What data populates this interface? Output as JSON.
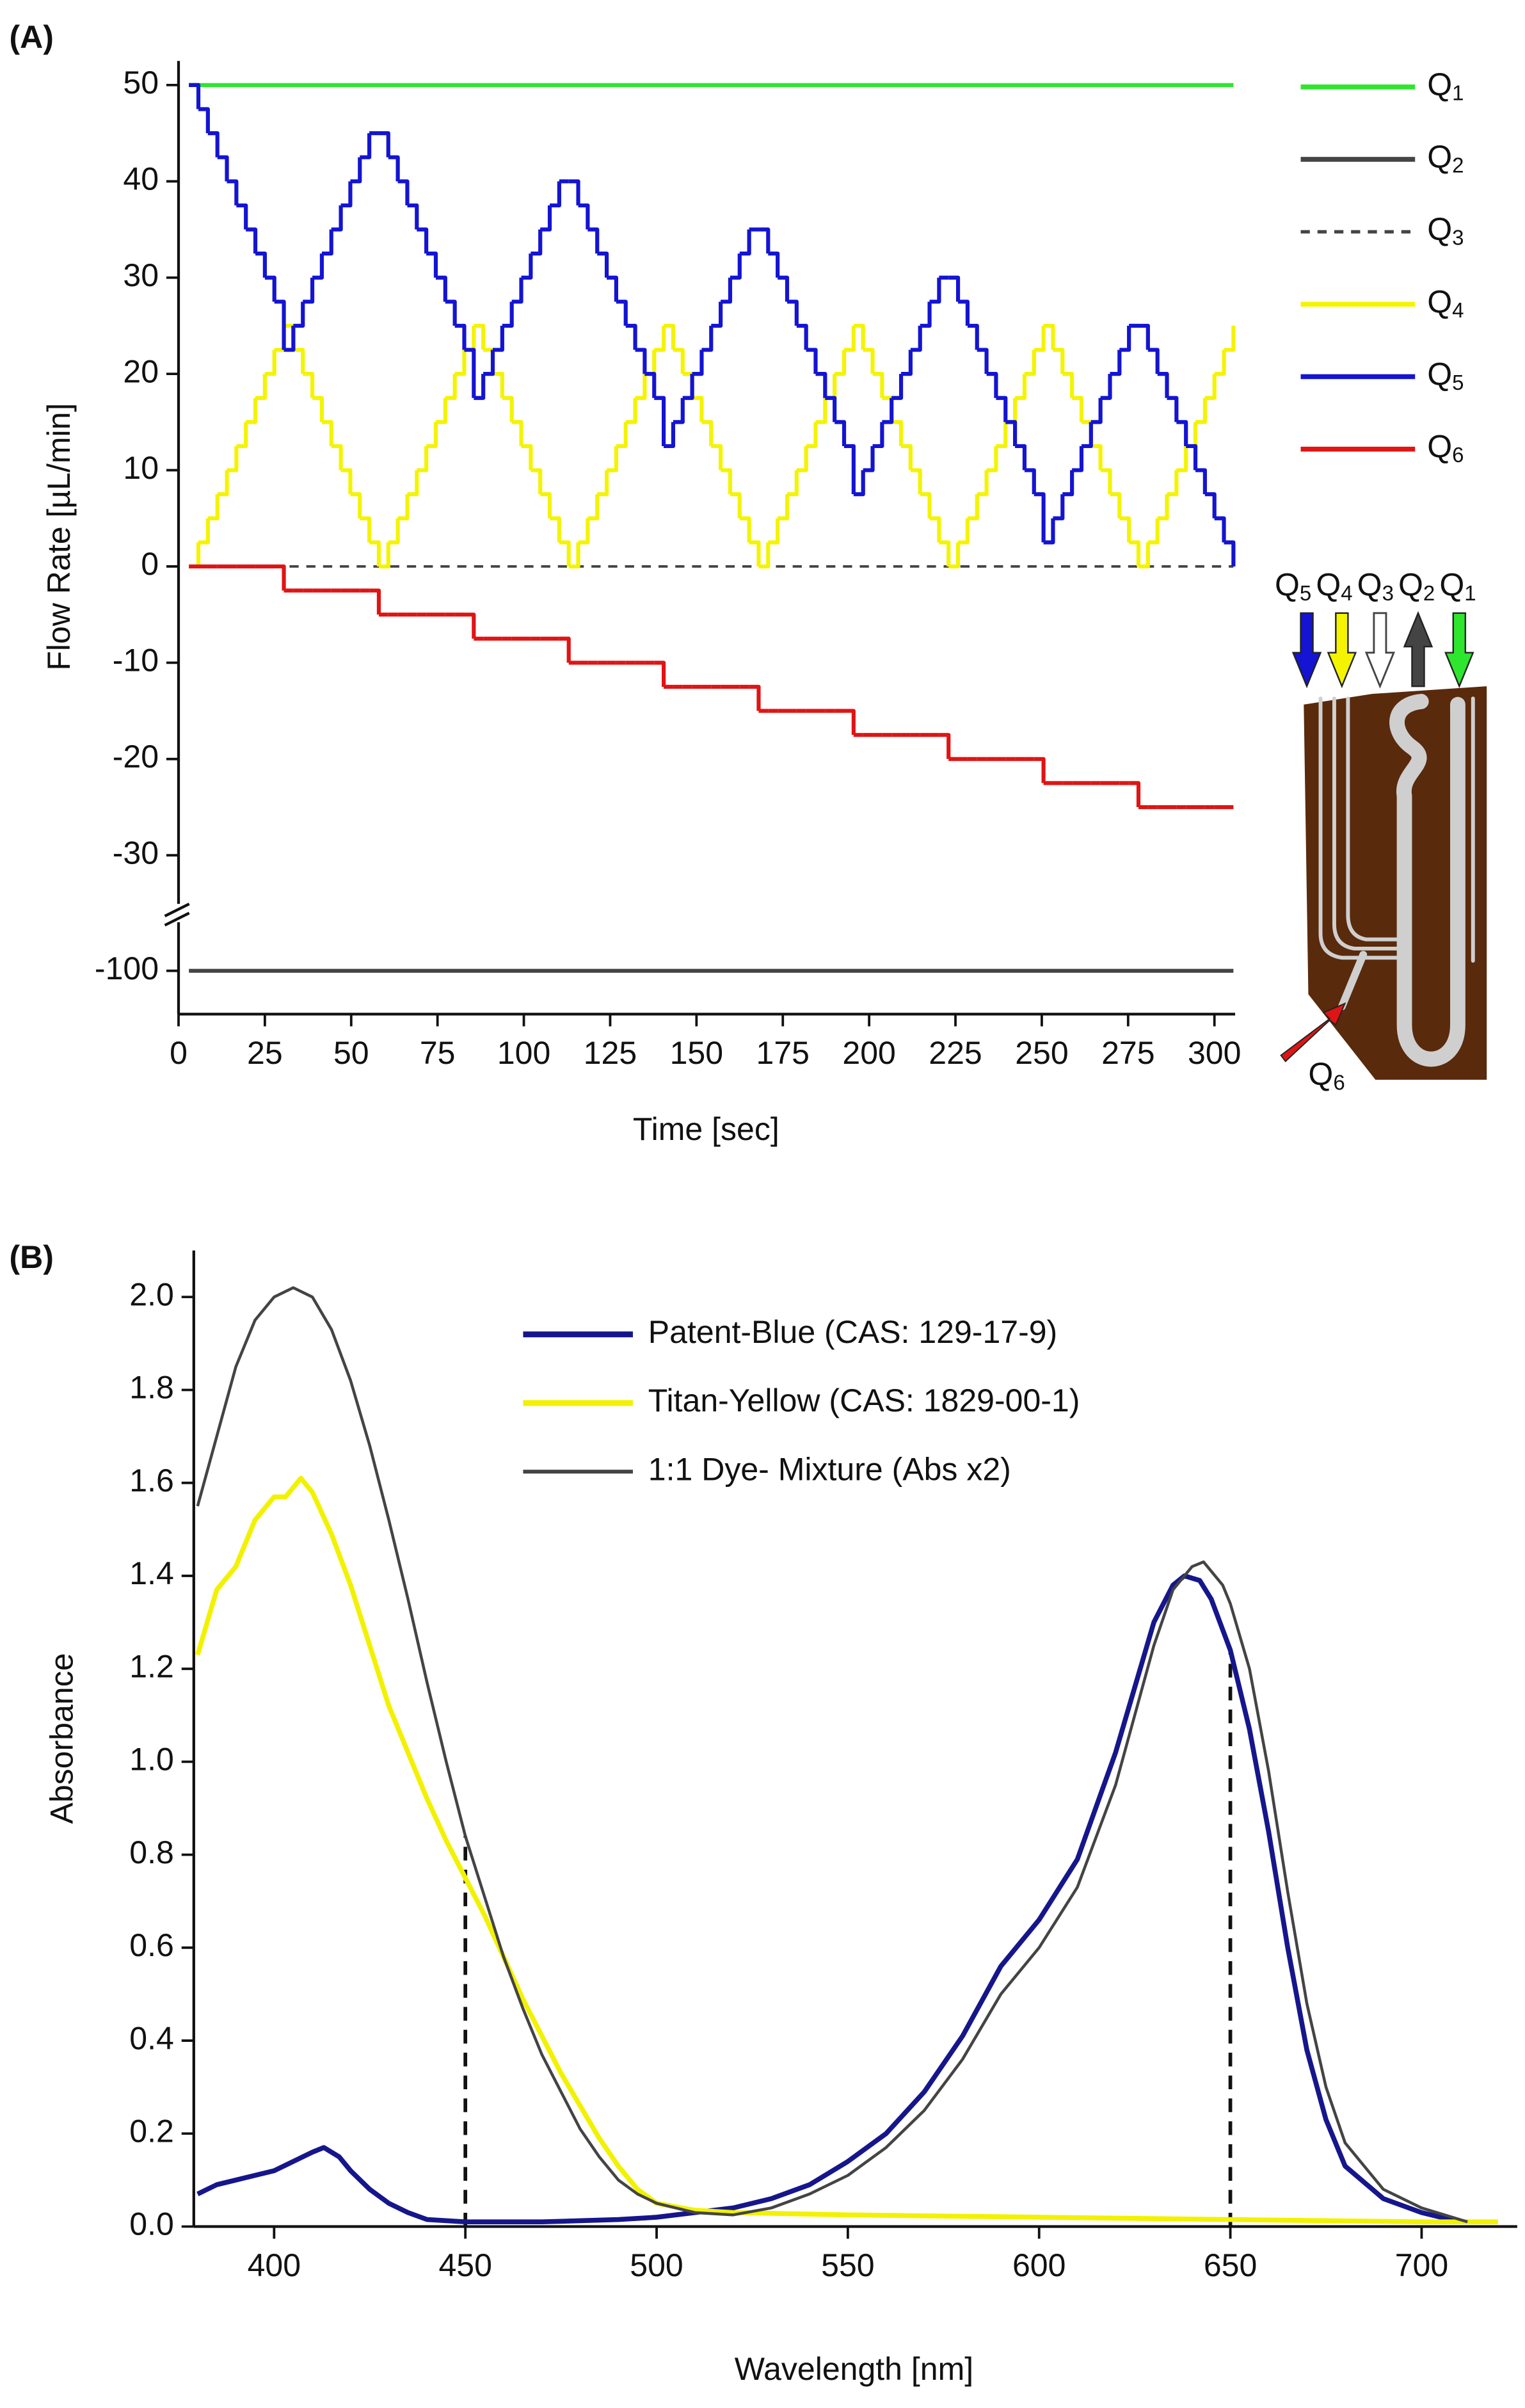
{
  "chart_data": [
    {
      "type": "line",
      "step": "post",
      "panel_label": "(A)",
      "xlabel": "Time [sec]",
      "ylabel": "Flow Rate [µL/min]",
      "xlim": [
        0,
        306
      ],
      "xticks": [
        0,
        25,
        50,
        75,
        100,
        125,
        150,
        175,
        200,
        225,
        250,
        275,
        300
      ],
      "ylim": [
        -104.5,
        52.5
      ],
      "ybreak": [
        -94,
        -36
      ],
      "yticks": [
        50,
        40,
        30,
        20,
        10,
        0,
        -10,
        -20,
        -30,
        -100
      ],
      "legend": "right",
      "x": [
        3,
        5.75,
        8.5,
        11.25,
        14,
        16.75,
        19.5,
        22.25,
        25,
        27.75,
        30.5,
        33.25,
        36,
        38.75,
        41.5,
        44.25,
        47,
        49.75,
        52.5,
        55.25,
        58,
        60.75,
        63.5,
        66.25,
        69,
        71.75,
        74.5,
        77.25,
        80,
        82.75,
        85.5,
        88.25,
        91,
        93.75,
        96.5,
        99.25,
        102,
        104.75,
        107.5,
        110.25,
        113,
        115.75,
        118.5,
        121.25,
        124,
        126.75,
        129.5,
        132.25,
        135,
        137.75,
        140.5,
        143.25,
        146,
        148.75,
        151.5,
        154.25,
        157,
        159.75,
        162.5,
        165.25,
        168,
        170.75,
        173.5,
        176.25,
        179,
        181.75,
        184.5,
        187.25,
        190,
        192.75,
        195.5,
        198.25,
        201,
        203.75,
        206.5,
        209.25,
        212,
        214.75,
        217.5,
        220.25,
        223,
        225.75,
        228.5,
        231.25,
        234,
        236.75,
        239.5,
        242.25,
        245,
        247.75,
        250.5,
        253.25,
        256,
        258.75,
        261.5,
        264.25,
        267,
        269.75,
        272.5,
        275.25,
        278,
        280.75,
        283.5,
        286.25,
        289,
        291.75,
        294.5,
        297.25,
        300,
        302.75,
        305.5
      ],
      "series": [
        {
          "name": "Q1",
          "color": "#2ee62e",
          "linewidth": 2.6,
          "x": [
            3,
            305.5
          ],
          "values": [
            50,
            50
          ]
        },
        {
          "name": "Q2",
          "color": "#444444",
          "linewidth": 2.6,
          "x": [
            3,
            305.5
          ],
          "values": [
            -100,
            -100
          ]
        },
        {
          "name": "Q3",
          "color": "#444444",
          "linewidth": 1.6,
          "linestyle": "dashed",
          "x": [
            3,
            305.5
          ],
          "values": [
            0,
            0
          ]
        },
        {
          "name": "Q4",
          "color": "#f4f400",
          "linewidth": 2.6,
          "values": [
            0,
            2.5,
            5,
            7.5,
            10,
            12.5,
            15,
            17.5,
            20,
            22.5,
            25,
            22.5,
            20,
            17.5,
            15,
            12.5,
            10,
            7.5,
            5,
            2.5,
            0,
            2.5,
            5,
            7.5,
            10,
            12.5,
            15,
            17.5,
            20,
            22.5,
            25,
            22.5,
            20,
            17.5,
            15,
            12.5,
            10,
            7.5,
            5,
            2.5,
            0,
            2.5,
            5,
            7.5,
            10,
            12.5,
            15,
            17.5,
            20,
            22.5,
            25,
            22.5,
            20,
            17.5,
            15,
            12.5,
            10,
            7.5,
            5,
            2.5,
            0,
            2.5,
            5,
            7.5,
            10,
            12.5,
            15,
            17.5,
            20,
            22.5,
            25,
            22.5,
            20,
            17.5,
            15,
            12.5,
            10,
            7.5,
            5,
            2.5,
            0,
            2.5,
            5,
            7.5,
            10,
            12.5,
            15,
            17.5,
            20,
            22.5,
            25,
            22.5,
            20,
            17.5,
            15,
            12.5,
            10,
            7.5,
            5,
            2.5,
            0,
            2.5,
            5,
            7.5,
            10,
            12.5,
            15,
            17.5,
            20,
            22.5,
            25
          ]
        },
        {
          "name": "Q5",
          "color": "#1414d2",
          "linewidth": 2.6,
          "values": [
            50,
            47.5,
            45,
            42.5,
            40,
            37.5,
            35,
            32.5,
            30,
            27.5,
            22.5,
            25,
            27.5,
            30,
            32.5,
            35,
            37.5,
            40,
            42.5,
            45,
            45,
            42.5,
            40,
            37.5,
            35,
            32.5,
            30,
            27.5,
            25,
            22.5,
            17.5,
            20,
            22.5,
            25,
            27.5,
            30,
            32.5,
            35,
            37.5,
            40,
            40,
            37.5,
            35,
            32.5,
            30,
            27.5,
            25,
            22.5,
            20,
            17.5,
            12.5,
            15,
            17.5,
            20,
            22.5,
            25,
            27.5,
            30,
            32.5,
            35,
            35,
            32.5,
            30,
            27.5,
            25,
            22.5,
            20,
            17.5,
            15,
            12.5,
            7.5,
            10,
            12.5,
            15,
            17.5,
            20,
            22.5,
            25,
            27.5,
            30,
            30,
            27.5,
            25,
            22.5,
            20,
            17.5,
            15,
            12.5,
            10,
            7.5,
            2.5,
            5,
            7.5,
            10,
            12.5,
            15,
            17.5,
            20,
            22.5,
            25,
            25,
            22.5,
            20,
            17.5,
            15,
            12.5,
            10,
            7.5,
            5,
            2.5,
            0
          ]
        },
        {
          "name": "Q6",
          "color": "#e01414",
          "linewidth": 2.6,
          "values": [
            0,
            0,
            0,
            0,
            0,
            0,
            0,
            0,
            0,
            0,
            -2.5,
            -2.5,
            -2.5,
            -2.5,
            -2.5,
            -2.5,
            -2.5,
            -2.5,
            -2.5,
            -2.5,
            -5,
            -5,
            -5,
            -5,
            -5,
            -5,
            -5,
            -5,
            -5,
            -5,
            -7.5,
            -7.5,
            -7.5,
            -7.5,
            -7.5,
            -7.5,
            -7.5,
            -7.5,
            -7.5,
            -7.5,
            -10,
            -10,
            -10,
            -10,
            -10,
            -10,
            -10,
            -10,
            -10,
            -10,
            -12.5,
            -12.5,
            -12.5,
            -12.5,
            -12.5,
            -12.5,
            -12.5,
            -12.5,
            -12.5,
            -12.5,
            -15,
            -15,
            -15,
            -15,
            -15,
            -15,
            -15,
            -15,
            -15,
            -15,
            -17.5,
            -17.5,
            -17.5,
            -17.5,
            -17.5,
            -17.5,
            -17.5,
            -17.5,
            -17.5,
            -17.5,
            -20,
            -20,
            -20,
            -20,
            -20,
            -20,
            -20,
            -20,
            -20,
            -20,
            -22.5,
            -22.5,
            -22.5,
            -22.5,
            -22.5,
            -22.5,
            -22.5,
            -22.5,
            -22.5,
            -22.5,
            -25,
            -25,
            -25,
            -25,
            -25,
            -25,
            -25,
            -25,
            -25,
            -25,
            -25
          ]
        }
      ],
      "inset": {
        "labels": [
          "Q5",
          "Q4",
          "Q3",
          "Q2",
          "Q1"
        ],
        "outlet": "Q6"
      }
    },
    {
      "type": "line",
      "panel_label": "(B)",
      "xlabel": "Wavelength [nm]",
      "ylabel": "Absorbance",
      "xlim": [
        379,
        725
      ],
      "xticks": [
        400,
        450,
        500,
        550,
        600,
        650,
        700
      ],
      "ylim": [
        0,
        2.1
      ],
      "yticks": [
        {
          "value": 0,
          "label": "0.0"
        },
        0.2,
        0.4,
        0.6,
        0.8,
        {
          "value": 1,
          "label": "1.0"
        },
        1.2,
        1.4,
        1.6,
        1.8,
        {
          "value": 2,
          "label": "2.0"
        }
      ],
      "legend": "upper right",
      "series": [
        {
          "name": "Patent-Blue (CAS: 129-17-9)",
          "color": "#16168c",
          "linewidth": 3.2,
          "x": [
            380,
            385,
            390,
            400,
            405,
            410,
            413,
            417,
            420,
            425,
            430,
            435,
            440,
            450,
            470,
            490,
            500,
            510,
            520,
            530,
            540,
            550,
            560,
            570,
            580,
            590,
            600,
            610,
            620,
            630,
            635,
            638,
            642,
            645,
            650,
            655,
            660,
            665,
            670,
            675,
            680,
            690,
            700,
            710
          ],
          "values": [
            0.07,
            0.09,
            0.1,
            0.12,
            0.14,
            0.16,
            0.17,
            0.15,
            0.12,
            0.08,
            0.05,
            0.03,
            0.015,
            0.01,
            0.01,
            0.015,
            0.02,
            0.03,
            0.04,
            0.06,
            0.09,
            0.14,
            0.2,
            0.29,
            0.41,
            0.56,
            0.66,
            0.79,
            1.02,
            1.3,
            1.38,
            1.4,
            1.39,
            1.35,
            1.24,
            1.07,
            0.85,
            0.6,
            0.38,
            0.23,
            0.13,
            0.06,
            0.03,
            0.01
          ]
        },
        {
          "name": "Titan-Yellow (CAS: 1829-00-1)",
          "color": "#f2f200",
          "linewidth": 3.2,
          "x": [
            380,
            385,
            390,
            395,
            400,
            403,
            407,
            410,
            415,
            420,
            425,
            430,
            435,
            440,
            445,
            450,
            455,
            460,
            465,
            470,
            475,
            480,
            485,
            490,
            495,
            500,
            510,
            520,
            550,
            600,
            650,
            700,
            720
          ],
          "values": [
            1.23,
            1.37,
            1.42,
            1.52,
            1.57,
            1.57,
            1.61,
            1.58,
            1.49,
            1.38,
            1.25,
            1.12,
            1.02,
            0.92,
            0.83,
            0.75,
            0.67,
            0.58,
            0.49,
            0.41,
            0.33,
            0.26,
            0.19,
            0.13,
            0.08,
            0.05,
            0.035,
            0.03,
            0.025,
            0.02,
            0.015,
            0.01,
            0.01
          ]
        },
        {
          "name": "1:1 Dye- Mixture (Abs x2)",
          "color": "#444444",
          "linewidth": 1.9,
          "x": [
            380,
            385,
            390,
            395,
            400,
            405,
            410,
            415,
            420,
            425,
            430,
            435,
            440,
            445,
            450,
            455,
            460,
            465,
            470,
            475,
            480,
            485,
            490,
            495,
            500,
            510,
            520,
            530,
            540,
            550,
            560,
            570,
            580,
            590,
            600,
            610,
            620,
            630,
            635,
            640,
            643,
            648,
            650,
            655,
            660,
            665,
            670,
            675,
            680,
            690,
            700,
            712
          ],
          "values": [
            1.55,
            1.7,
            1.85,
            1.95,
            2.0,
            2.02,
            2.0,
            1.93,
            1.82,
            1.68,
            1.52,
            1.35,
            1.17,
            1.0,
            0.84,
            0.71,
            0.58,
            0.47,
            0.37,
            0.29,
            0.21,
            0.15,
            0.1,
            0.07,
            0.05,
            0.03,
            0.025,
            0.04,
            0.07,
            0.11,
            0.17,
            0.25,
            0.36,
            0.5,
            0.6,
            0.73,
            0.95,
            1.25,
            1.37,
            1.42,
            1.43,
            1.38,
            1.34,
            1.2,
            0.98,
            0.72,
            0.48,
            0.3,
            0.18,
            0.08,
            0.04,
            0.01
          ]
        }
      ],
      "vlines": [
        {
          "x": 450,
          "y": 0.84
        },
        {
          "x": 650,
          "y": 1.24
        }
      ]
    }
  ]
}
